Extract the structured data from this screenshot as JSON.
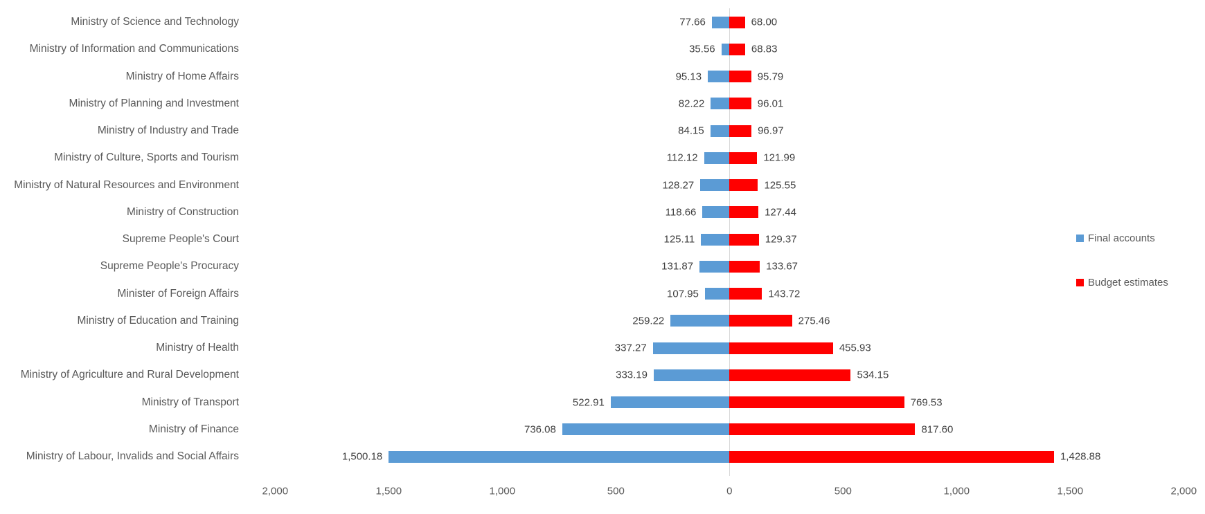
{
  "chart_data": {
    "type": "bar",
    "orientation": "horizontal-diverging",
    "title": "",
    "categories": [
      "Ministry of Science and Technology",
      "Ministry of Information and Communications",
      "Ministry of Home Affairs",
      "Ministry of Planning and Investment",
      "Ministry of Industry and Trade",
      "Ministry of Culture, Sports and Tourism",
      "Ministry of Natural Resources and Environment",
      "Ministry of Construction",
      "Supreme People's Court",
      "Supreme People's Procuracy",
      "Minister of Foreign Affairs",
      "Ministry of Education and Training",
      "Ministry of Health",
      "Ministry of Agriculture and Rural Development",
      "Ministry of Transport",
      "Ministry of Finance",
      "Ministry of Labour, Invalids and Social Affairs"
    ],
    "series": [
      {
        "name": "Final accounts",
        "side": "left",
        "color": "#5b9bd5",
        "values": [
          77.66,
          35.56,
          95.13,
          82.22,
          84.15,
          112.12,
          128.27,
          118.66,
          125.11,
          131.87,
          107.95,
          259.22,
          337.27,
          333.19,
          522.91,
          736.08,
          1500.18
        ],
        "value_labels": [
          "77.66",
          "35.56",
          "95.13",
          "82.22",
          "84.15",
          "112.12",
          "128.27",
          "118.66",
          "125.11",
          "131.87",
          "107.95",
          "259.22",
          "337.27",
          "333.19",
          "522.91",
          "736.08",
          "1,500.18"
        ]
      },
      {
        "name": "Budget estimates",
        "side": "right",
        "color": "#ff0000",
        "values": [
          68.0,
          68.83,
          95.79,
          96.01,
          96.97,
          121.99,
          125.55,
          127.44,
          129.37,
          133.67,
          143.72,
          275.46,
          455.93,
          534.15,
          769.53,
          817.6,
          1428.88
        ],
        "value_labels": [
          "68.00",
          "68.83",
          "95.79",
          "96.01",
          "96.97",
          "121.99",
          "125.55",
          "127.44",
          "129.37",
          "133.67",
          "143.72",
          "275.46",
          "455.93",
          "534.15",
          "769.53",
          "817.60",
          "1,428.88"
        ]
      }
    ],
    "x_axis": {
      "range_each_side": [
        0,
        2000
      ],
      "ticks": [
        -2000,
        -1500,
        -1000,
        -500,
        0,
        500,
        1000,
        1500,
        2000
      ],
      "tick_labels": [
        "2,000",
        "1,500",
        "1,000",
        "500",
        "0",
        "500",
        "1,000",
        "1,500",
        "2,000"
      ]
    },
    "legend": {
      "position": "right",
      "entries": [
        {
          "label": "Final accounts",
          "color": "#5b9bd5"
        },
        {
          "label": "Budget estimates",
          "color": "#ff0000"
        }
      ]
    },
    "grid": "zero-axis-only",
    "colors": {
      "text": "#595959",
      "gridline": "#d9d9d9"
    }
  }
}
